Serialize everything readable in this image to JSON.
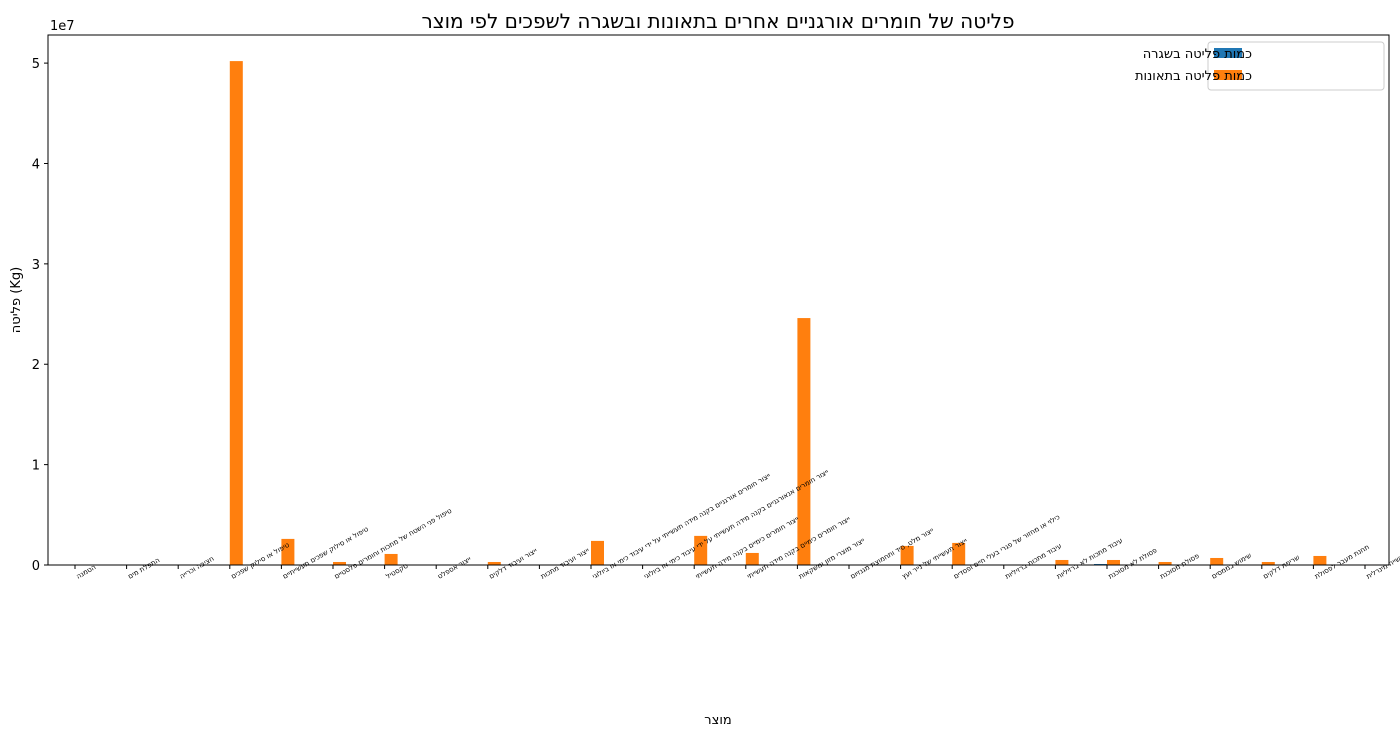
{
  "chart_data": {
    "type": "bar",
    "title": "פליטה של חומרים אורגניים אחרים בתאונות ובשגרה לשפכים לפי מוצר",
    "xlabel": "מוצר",
    "ylabel": "פליטה (Kg)",
    "y_scale_label": "1e7",
    "y_tick_values": [
      0,
      10000000,
      20000000,
      30000000,
      40000000,
      50000000
    ],
    "y_tick_labels": [
      "0",
      "1",
      "2",
      "3",
      "4",
      "5"
    ],
    "ylim": [
      0,
      52800000
    ],
    "legend_position": "top-right",
    "grid": false,
    "categories": [
      "הטמנה",
      "התפלת מים",
      "חציבה וכרייה",
      "טיפול או סילוק שפכים",
      "טיפול או סילוק שפכים תעשייתיים",
      "טיפול פני השטח של מתכות וחומרים פלסטיים",
      "טקסטיל",
      "ייצור אספלט",
      "ייצור ועיבוד דלקים",
      "ייצור ועיבוד מתכות",
      "ייצור חומרים אורגניים בקנה מידה תעשייתי על ידי עיבוד כימי או ביולוגי",
      "ייצור חומרים אנאורגניים בקנה מידה תעשייתי על ידי עיבוד כימי או ביולוגי",
      "ייצור חומרים כימיים בקנה מידה תעשייתי",
      "ייצור חומרים כימיים בקנה מידה תעשייתי",
      "ייצור מוצרי מזון ומשקאות",
      "ייצור מלט, סיד ותחמוצת מגנזיום",
      "ייצור תעשייתי של נייר ועץ",
      "כילוי או מחזור של פגרי בעלי חיים ופסדים",
      "עיבוד מתכות ברזיליות",
      "עיבוד מתכות לא ברזיליות",
      "פסולת לא מסוכנת",
      "פסולת מסוכנת",
      "שימוש בממסים",
      "שריפת דלקים",
      "תחנת מעבר לפסולת",
      "תעשייה מינרלית"
    ],
    "series": [
      {
        "name": "כמות פליטה בשגרה",
        "color": "#1f77b4",
        "values": [
          0,
          0,
          0,
          0,
          0,
          0,
          0,
          0,
          0,
          0,
          0,
          0,
          0,
          0,
          0,
          0,
          0,
          0,
          0,
          0,
          100000,
          0,
          0,
          0,
          0,
          0
        ]
      },
      {
        "name": "כמות פליטה בתאונות",
        "color": "#ff7f0e",
        "values": [
          0,
          0,
          0,
          50200000,
          2600000,
          300000,
          1100000,
          0,
          300000,
          0,
          2400000,
          0,
          2900000,
          1200000,
          24600000,
          0,
          1900000,
          2200000,
          0,
          500000,
          500000,
          300000,
          700000,
          300000,
          900000,
          50000
        ]
      }
    ]
  }
}
